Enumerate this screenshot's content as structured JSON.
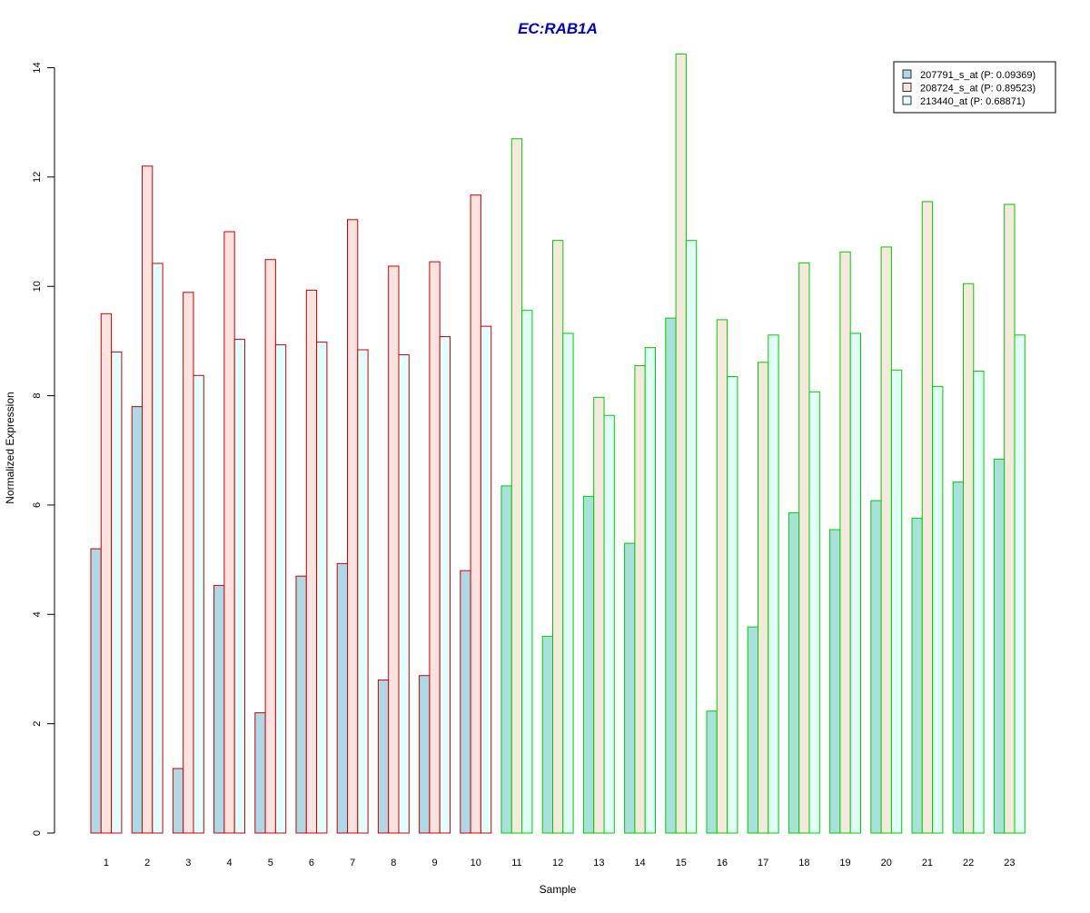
{
  "chart_data": {
    "type": "bar",
    "title": "EC:RAB1A",
    "title_color": "#0000CC",
    "xlabel": "Sample",
    "ylabel": "Normalized Expression",
    "ylim": [
      0,
      14
    ],
    "yticks": [
      0,
      2,
      4,
      6,
      8,
      10,
      12,
      14
    ],
    "grid": false,
    "legend_position": "top-right",
    "categories": [
      "1",
      "2",
      "3",
      "4",
      "5",
      "6",
      "7",
      "8",
      "9",
      "10",
      "11",
      "12",
      "13",
      "14",
      "15",
      "16",
      "17",
      "18",
      "19",
      "20",
      "21",
      "22",
      "23"
    ],
    "group_border_colors": [
      "#CC0000",
      "#CC0000",
      "#CC0000",
      "#CC0000",
      "#CC0000",
      "#CC0000",
      "#CC0000",
      "#CC0000",
      "#CC0000",
      "#CC0000",
      "#00CC00",
      "#00CC00",
      "#00CC00",
      "#00CC00",
      "#00CC00",
      "#00CC00",
      "#00CC00",
      "#00CC00",
      "#00CC00",
      "#00CC00",
      "#00CC00",
      "#00CC00",
      "#00CC00"
    ],
    "series": [
      {
        "name": "207791_s_at (P: 0.09369)",
        "fill": "#ADD8E6",
        "values": [
          5.2,
          7.8,
          1.18,
          4.53,
          2.2,
          4.7,
          4.93,
          2.8,
          2.88,
          4.8,
          6.35,
          3.6,
          6.16,
          5.3,
          9.42,
          2.23,
          3.77,
          5.86,
          5.55,
          6.08,
          5.76,
          6.42,
          6.84
        ]
      },
      {
        "name": "208724_s_at (P: 0.89523)",
        "fill": "#FDE3DF",
        "values": [
          9.5,
          12.2,
          9.89,
          11.0,
          10.49,
          9.93,
          11.22,
          10.37,
          10.45,
          11.67,
          12.7,
          10.84,
          7.97,
          8.55,
          14.25,
          9.39,
          8.61,
          10.43,
          10.63,
          10.72,
          11.55,
          10.05,
          11.5
        ]
      },
      {
        "name": "213440_at (P: 0.68871)",
        "fill": "#E0FFFF",
        "values": [
          8.8,
          10.42,
          8.37,
          9.03,
          8.93,
          8.98,
          8.84,
          8.75,
          9.08,
          9.27,
          9.56,
          9.14,
          7.64,
          8.88,
          10.84,
          8.35,
          9.11,
          8.07,
          9.14,
          8.47,
          8.17,
          8.45,
          9.11
        ]
      }
    ],
    "first_group_fills": [
      "#ADD8E6",
      "#FDE3DF",
      "#E0FFFF"
    ],
    "second_group_fills": [
      "#A8E0DC",
      "#F5E9DC",
      "#E0FFF8"
    ]
  }
}
